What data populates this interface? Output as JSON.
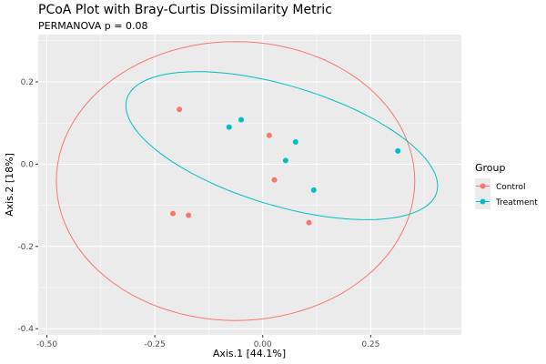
{
  "chart_data": {
    "type": "scatter",
    "title": "PCoA Plot with Bray-Curtis Dissimilarity Metric",
    "subtitle": "PERMANOVA p = 0.08",
    "xlabel": "Axis.1  [44.1%]",
    "ylabel": "Axis.2  [18%]",
    "xlim": [
      -0.52,
      0.46
    ],
    "ylim": [
      -0.415,
      0.315
    ],
    "xticks": [
      -0.5,
      -0.25,
      0,
      0.25
    ],
    "xtick_labels": [
      "-0.50",
      "-0.25",
      "0.00",
      "0.25"
    ],
    "yticks": [
      -0.4,
      -0.2,
      0,
      0.2
    ],
    "ytick_labels": [
      "-0.4",
      "-0.2",
      "0.0",
      "0.2"
    ],
    "grid": true,
    "legend": {
      "title": "Group",
      "position": "right"
    },
    "series": [
      {
        "name": "Control",
        "color": "#F8766D",
        "points": [
          [
            -0.193,
            0.133
          ],
          [
            0.015,
            0.07
          ],
          [
            0.027,
            -0.038
          ],
          [
            -0.208,
            -0.12
          ],
          [
            -0.172,
            -0.124
          ],
          [
            0.107,
            -0.142
          ]
        ],
        "ellipse": {
          "center": [
            -0.063,
            -0.041
          ],
          "u": [
            0.415,
            0.0
          ],
          "v": [
            0.0,
            0.339
          ]
        }
      },
      {
        "name": "Treatment",
        "color": "#00BFC4",
        "points": [
          [
            -0.078,
            0.09
          ],
          [
            -0.05,
            0.108
          ],
          [
            0.076,
            0.054
          ],
          [
            0.053,
            0.009
          ],
          [
            0.118,
            -0.063
          ],
          [
            0.313,
            0.032
          ]
        ],
        "ellipse": {
          "center": [
            0.044,
            0.045
          ],
          "u": [
            -0.359,
            0.113
          ],
          "v": [
            0.038,
            0.14
          ]
        }
      }
    ]
  }
}
